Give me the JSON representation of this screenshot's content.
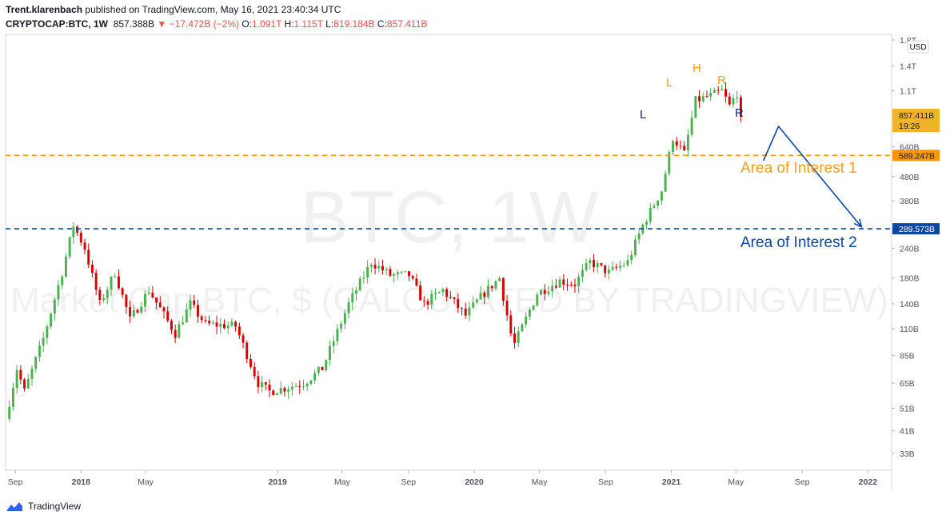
{
  "header": {
    "author": "Trent.klarenbach",
    "published": "published on TradingView.com, May 16, 2021 23:40:34 UTC",
    "symbol": "CRYPTOCAP:BTC, 1W",
    "last": "857.388B",
    "change": "▼ −17.472B (−2%)",
    "o_label": "O:",
    "o_value": "1.091T",
    "h_label": "H:",
    "h_value": "1.115T",
    "l_label": "L:",
    "l_value": "819.184B",
    "c_label": "C:",
    "c_value": "857.411B"
  },
  "watermark": {
    "line1": "BTC, 1W",
    "line2": "Market Cap BTC, $ (CALCULATED BY TRADINGVIEW)"
  },
  "price_axis": {
    "currency": "USD",
    "ticks": [
      "1.8T",
      "1.4T",
      "1.1T",
      "850B",
      "640B",
      "480B",
      "380B",
      "290B",
      "240B",
      "180B",
      "140B",
      "110B",
      "85B",
      "65B",
      "51B",
      "41B",
      "33B"
    ],
    "current_price": "857.411B",
    "countdown": "19:26",
    "level1_label": "589.247B",
    "level2_label": "289.573B"
  },
  "time_axis": {
    "ticks": [
      "Sep",
      "2018",
      "May",
      "2019",
      "May",
      "Sep",
      "2020",
      "May",
      "Sep",
      "2021",
      "May",
      "Sep",
      "2022"
    ]
  },
  "annotations": {
    "area1": "Area of Interest 1",
    "area2": "Area of Interest 2",
    "labels": [
      "L",
      "H",
      "R",
      "L",
      "R"
    ]
  },
  "footer": {
    "brand": "TradingView"
  },
  "colors": {
    "up": "#4caf50",
    "down": "#d50000",
    "level1": "#ff9800",
    "level2": "#0d47a1",
    "arrow": "#0d47a1",
    "annot_orange": "#f0a020",
    "annot_navy": "#1a237e"
  },
  "chart_data": {
    "type": "candlestick",
    "interval": "1W",
    "scale": "log",
    "grid": false,
    "x_range": [
      "2017-08-14",
      "2022-02-14"
    ],
    "y_range": [
      28,
      1900
    ],
    "horizontal_levels": [
      {
        "name": "Area of Interest 1",
        "value": 589.247,
        "unit": "B"
      },
      {
        "name": "Area of Interest 2",
        "value": 289.573,
        "unit": "B"
      }
    ],
    "projection": [
      {
        "date": "2021-06-21",
        "value": 560
      },
      {
        "date": "2021-07-19",
        "value": 780
      },
      {
        "date": "2021-12-20",
        "value": 295
      }
    ],
    "anchors": [
      {
        "date": "2017-08-14",
        "value": 46
      },
      {
        "date": "2017-09-04",
        "value": 75
      },
      {
        "date": "2017-09-18",
        "value": 60
      },
      {
        "date": "2017-10-23",
        "value": 100
      },
      {
        "date": "2017-11-27",
        "value": 190
      },
      {
        "date": "2017-12-18",
        "value": 300
      },
      {
        "date": "2018-01-08",
        "value": 240
      },
      {
        "date": "2018-02-05",
        "value": 140
      },
      {
        "date": "2018-03-05",
        "value": 190
      },
      {
        "date": "2018-04-02",
        "value": 120
      },
      {
        "date": "2018-05-07",
        "value": 160
      },
      {
        "date": "2018-06-25",
        "value": 105
      },
      {
        "date": "2018-07-23",
        "value": 140
      },
      {
        "date": "2018-08-20",
        "value": 115
      },
      {
        "date": "2018-10-15",
        "value": 113
      },
      {
        "date": "2018-11-26",
        "value": 65
      },
      {
        "date": "2018-12-17",
        "value": 60
      },
      {
        "date": "2019-01-14",
        "value": 62
      },
      {
        "date": "2019-02-18",
        "value": 65
      },
      {
        "date": "2019-03-25",
        "value": 75
      },
      {
        "date": "2019-05-13",
        "value": 140
      },
      {
        "date": "2019-06-24",
        "value": 210
      },
      {
        "date": "2019-07-29",
        "value": 185
      },
      {
        "date": "2019-09-02",
        "value": 185
      },
      {
        "date": "2019-09-30",
        "value": 140
      },
      {
        "date": "2019-11-04",
        "value": 160
      },
      {
        "date": "2019-12-16",
        "value": 125
      },
      {
        "date": "2020-01-13",
        "value": 150
      },
      {
        "date": "2020-02-17",
        "value": 180
      },
      {
        "date": "2020-03-09",
        "value": 105
      },
      {
        "date": "2020-03-16",
        "value": 95
      },
      {
        "date": "2020-04-27",
        "value": 155
      },
      {
        "date": "2020-06-08",
        "value": 175
      },
      {
        "date": "2020-07-06",
        "value": 170
      },
      {
        "date": "2020-08-03",
        "value": 210
      },
      {
        "date": "2020-09-07",
        "value": 190
      },
      {
        "date": "2020-10-12",
        "value": 210
      },
      {
        "date": "2020-11-09",
        "value": 300
      },
      {
        "date": "2020-12-14",
        "value": 420
      },
      {
        "date": "2021-01-04",
        "value": 700
      },
      {
        "date": "2021-01-25",
        "value": 600
      },
      {
        "date": "2021-02-15",
        "value": 1000
      },
      {
        "date": "2021-03-15",
        "value": 1050
      },
      {
        "date": "2021-04-05",
        "value": 1100
      },
      {
        "date": "2021-04-19",
        "value": 950
      },
      {
        "date": "2021-05-03",
        "value": 1080
      },
      {
        "date": "2021-05-10",
        "value": 857.4
      }
    ]
  }
}
